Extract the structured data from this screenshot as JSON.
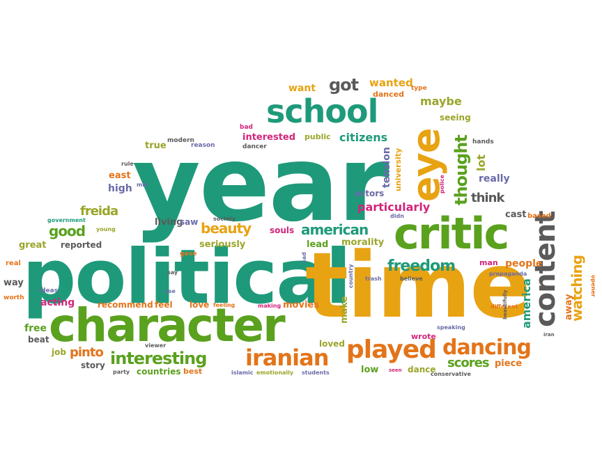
{
  "colors": {
    "teal": "#1e9a7a",
    "gold": "#e8a313",
    "green": "#5aa11e",
    "orange": "#e3741a",
    "magenta": "#d3247b",
    "purple": "#6a6aa8",
    "gray": "#5a5a5a",
    "olive": "#9aa52a"
  },
  "words": {
    "year": "year",
    "political": "political",
    "time": "time",
    "character": "character",
    "critic": "critic",
    "school": "school",
    "eye": "eye",
    "content": "content",
    "played": "played",
    "dancing": "dancing",
    "iranian": "iranian",
    "interesting": "interesting",
    "freedom": "freedom",
    "american": "american",
    "beauty": "beauty",
    "thought": "thought",
    "particularly": "particularly",
    "citizens": "citizens",
    "got": "got",
    "wanted": "wanted",
    "maybe": "maybe",
    "want": "want",
    "freida": "freida",
    "good": "good",
    "pinto": "pinto",
    "scores": "scores",
    "watching": "watching",
    "america": "america",
    "people": "people",
    "think": "think",
    "really": "really",
    "lot": "lot",
    "tension": "tension",
    "interested": "interested",
    "public": "public",
    "morality": "morality",
    "seriously": "seriously",
    "acting": "acting",
    "recommend": "recommend",
    "feel": "feel",
    "love": "love",
    "movies": "movies",
    "countries": "countries",
    "story": "story",
    "best": "best",
    "low": "low",
    "dance": "dance",
    "piece": "piece",
    "loved": "loved",
    "wrote": "wrote",
    "man": "man",
    "make": "make",
    "lead": "lead",
    "souls": "souls",
    "living": "living",
    "saw": "saw",
    "reported": "reported",
    "great": "great",
    "high": "high",
    "east": "east",
    "true": "true",
    "actors": "actors",
    "seeing": "seeing",
    "cast": "cast",
    "based": "based",
    "away": "away",
    "free": "free",
    "beat": "beat",
    "job": "job",
    "way": "way",
    "real": "real",
    "worth": "worth",
    "ideas": "ideas",
    "university": "university",
    "danced": "danced",
    "type": "type",
    "hands": "hands",
    "police": "police",
    "didn": "didn",
    "bad": "bad",
    "dancer": "dancer",
    "modern": "modern",
    "reason": "reason",
    "rule": "rule",
    "mid": "mid",
    "government": "government",
    "young": "young",
    "society": "society",
    "gave": "gave",
    "say": "say",
    "use": "use",
    "feeling": "feeling",
    "making": "making",
    "viewer": "viewer",
    "party": "party",
    "islamic": "islamic",
    "emotionally": "emotionally",
    "students": "students",
    "seen": "seen",
    "conservative": "conservative",
    "country": "country",
    "sad": "sad",
    "trash": "trash",
    "believe": "believe",
    "propaganda": "propaganda",
    "different": "different",
    "beautifully": "beautifully",
    "speaking": "speaking",
    "iran": "iran",
    "opener": "opener"
  }
}
